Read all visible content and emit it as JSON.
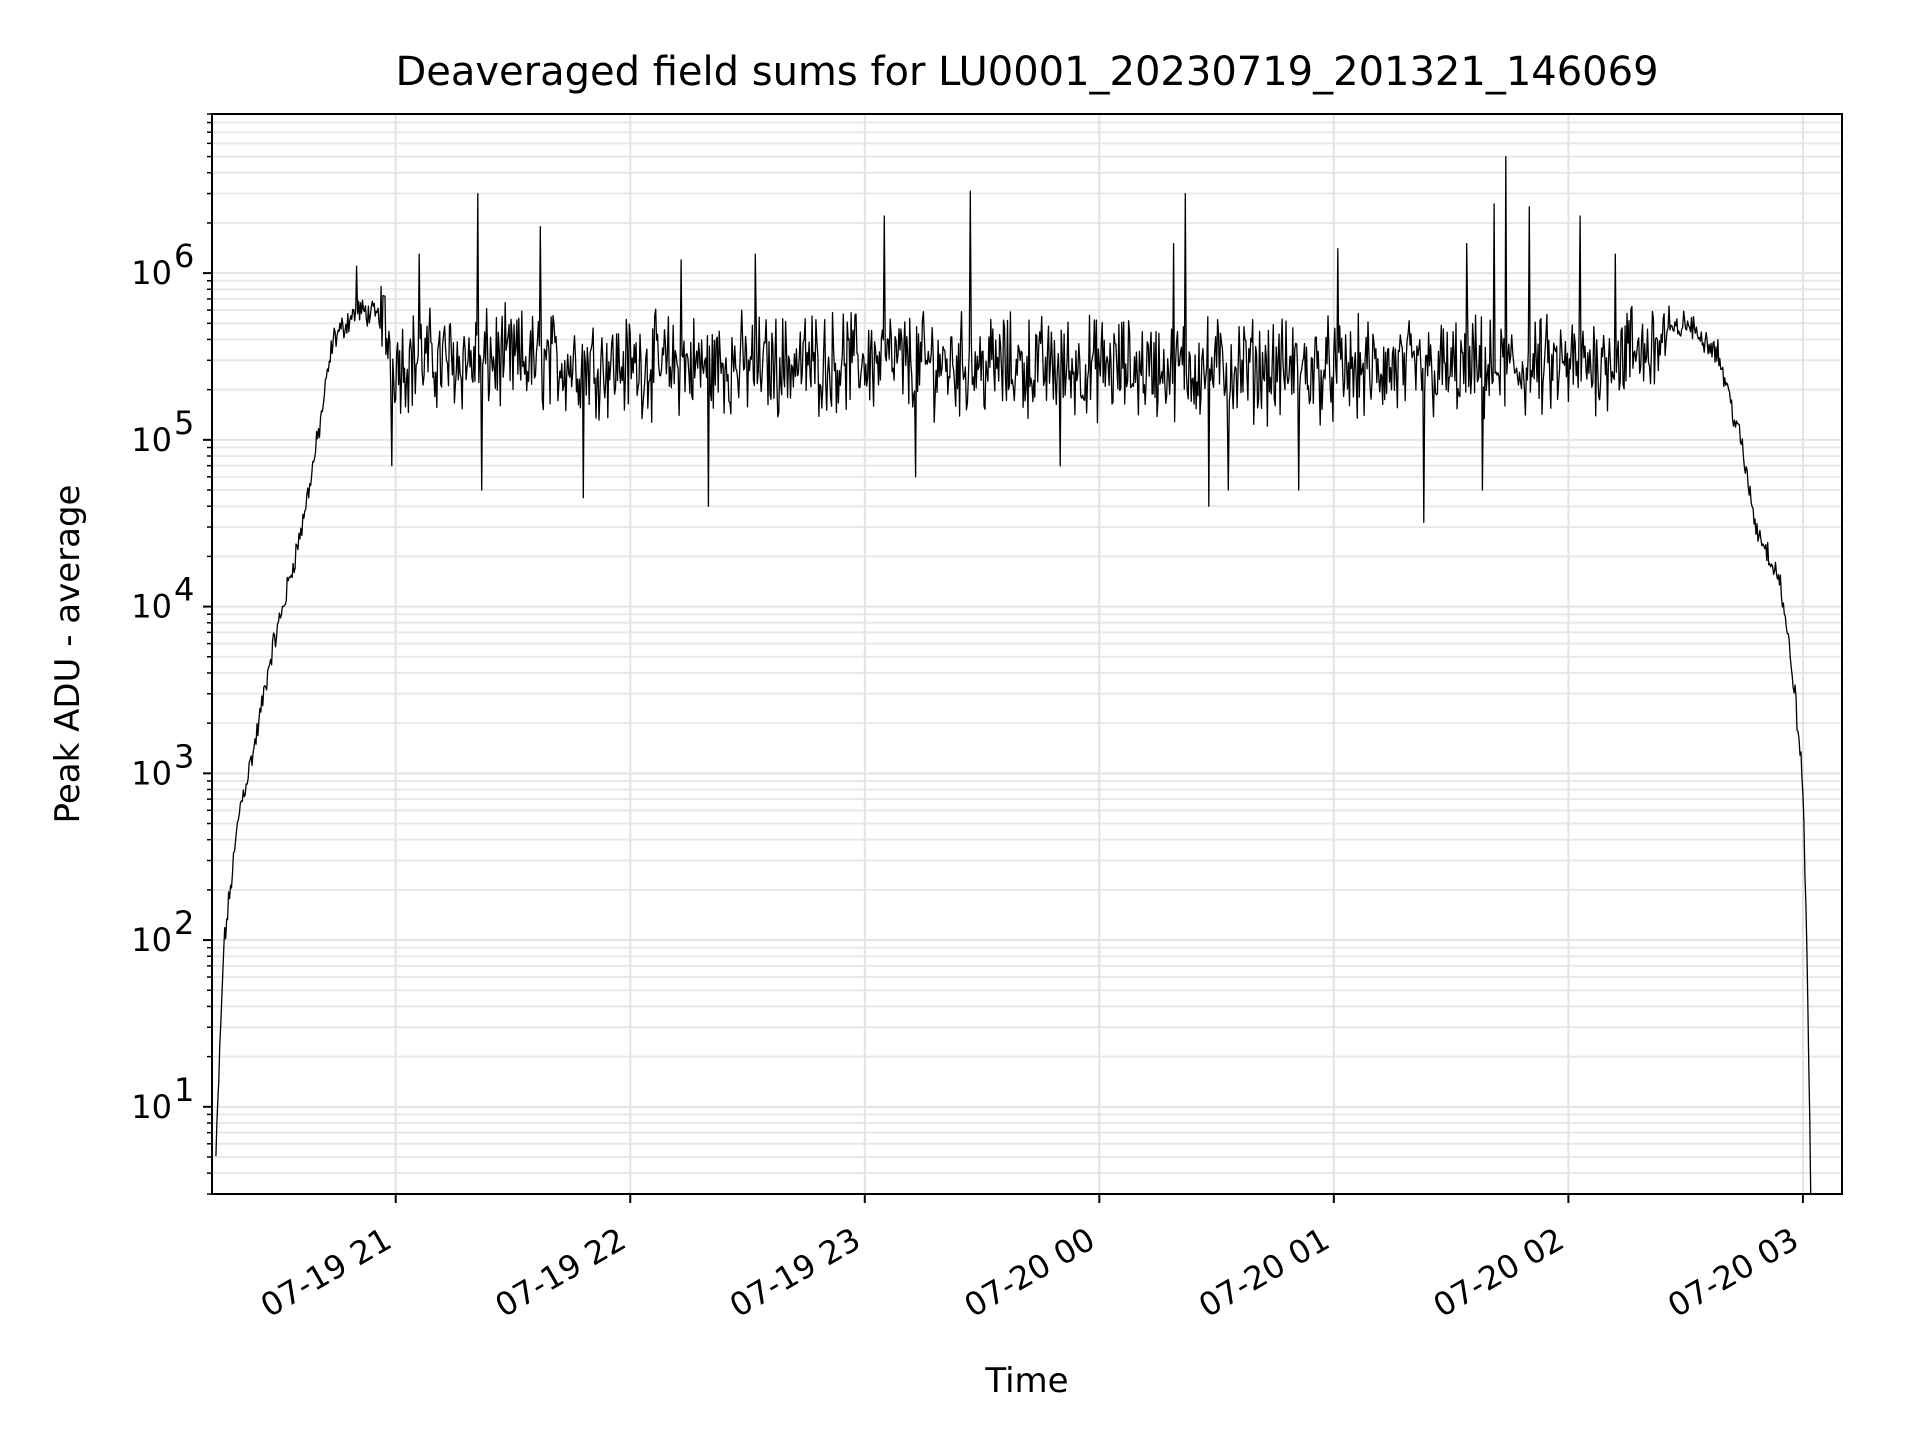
{
  "chart_data": {
    "type": "line",
    "title": "Deaveraged field sums for LU0001_20230719_201321_146069",
    "xlabel": "Time",
    "ylabel": "Peak ADU - average",
    "y_scale": "log",
    "ylim": [
      3,
      9000000
    ],
    "xlim": [
      "2023-07-19 20:13",
      "2023-07-20 03:10"
    ],
    "x_ticks": [
      {
        "value": "2023-07-19 21:00",
        "label": "07-19 21"
      },
      {
        "value": "2023-07-19 22:00",
        "label": "07-19 22"
      },
      {
        "value": "2023-07-19 23:00",
        "label": "07-19 23"
      },
      {
        "value": "2023-07-20 00:00",
        "label": "07-20 00"
      },
      {
        "value": "2023-07-20 01:00",
        "label": "07-20 01"
      },
      {
        "value": "2023-07-20 02:00",
        "label": "07-20 02"
      },
      {
        "value": "2023-07-20 03:00",
        "label": "07-20 03"
      }
    ],
    "y_ticks": [
      {
        "value": 10,
        "label": "10",
        "exp": "1"
      },
      {
        "value": 100,
        "label": "10",
        "exp": "2"
      },
      {
        "value": 1000,
        "label": "10",
        "exp": "3"
      },
      {
        "value": 10000,
        "label": "10",
        "exp": "4"
      },
      {
        "value": 100000,
        "label": "10",
        "exp": "5"
      },
      {
        "value": 1000000,
        "label": "10",
        "exp": "6"
      }
    ],
    "grid": true,
    "series": [
      {
        "color": "#000000",
        "points": [
          [
            "2023-07-19 20:14",
            5
          ],
          [
            "2023-07-19 20:16",
            90
          ],
          [
            "2023-07-19 20:20",
            600
          ],
          [
            "2023-07-19 20:24",
            1500
          ],
          [
            "2023-07-19 20:28",
            5000
          ],
          [
            "2023-07-19 20:32",
            12000
          ],
          [
            "2023-07-19 20:36",
            30000
          ],
          [
            "2023-07-19 20:40",
            100000
          ],
          [
            "2023-07-19 20:44",
            400000
          ],
          [
            "2023-07-19 20:50",
            600000
          ],
          [
            "2023-07-19 20:56",
            550000
          ],
          [
            "2023-07-19 21:00",
            300000
          ],
          [
            "2023-07-19 21:30",
            300000
          ],
          [
            "2023-07-19 22:00",
            280000
          ],
          [
            "2023-07-19 22:30",
            280000
          ],
          [
            "2023-07-19 23:00",
            300000
          ],
          [
            "2023-07-19 23:30",
            280000
          ],
          [
            "2023-07-20 00:00",
            270000
          ],
          [
            "2023-07-20 00:30",
            270000
          ],
          [
            "2023-07-20 01:00",
            260000
          ],
          [
            "2023-07-20 01:30",
            260000
          ],
          [
            "2023-07-20 02:00",
            270000
          ],
          [
            "2023-07-20 02:20",
            350000
          ],
          [
            "2023-07-20 02:30",
            500000
          ],
          [
            "2023-07-20 02:38",
            350000
          ],
          [
            "2023-07-20 02:44",
            100000
          ],
          [
            "2023-07-20 02:48",
            30000
          ],
          [
            "2023-07-20 02:54",
            15000
          ],
          [
            "2023-07-20 02:58",
            3000
          ],
          [
            "2023-07-20 03:00",
            800
          ],
          [
            "2023-07-20 03:01",
            100
          ],
          [
            "2023-07-20 03:02",
            3
          ]
        ],
        "spikes": [
          [
            "2023-07-19 20:50",
            1100000
          ],
          [
            "2023-07-19 21:06",
            1300000
          ],
          [
            "2023-07-19 21:21",
            3000000
          ],
          [
            "2023-07-19 21:37",
            1900000
          ],
          [
            "2023-07-19 22:13",
            1200000
          ],
          [
            "2023-07-19 22:32",
            1300000
          ],
          [
            "2023-07-19 23:05",
            2200000
          ],
          [
            "2023-07-19 23:27",
            3100000
          ],
          [
            "2023-07-20 00:19",
            1500000
          ],
          [
            "2023-07-20 00:22",
            3000000
          ],
          [
            "2023-07-20 01:01",
            1400000
          ],
          [
            "2023-07-20 01:34",
            1500000
          ],
          [
            "2023-07-20 01:41",
            2600000
          ],
          [
            "2023-07-20 01:44",
            5000000
          ],
          [
            "2023-07-20 01:50",
            2500000
          ],
          [
            "2023-07-20 02:03",
            2200000
          ],
          [
            "2023-07-20 02:12",
            1300000
          ]
        ],
        "dips": [
          [
            "2023-07-19 20:59",
            70000
          ],
          [
            "2023-07-19 21:22",
            50000
          ],
          [
            "2023-07-19 21:48",
            45000
          ],
          [
            "2023-07-19 22:20",
            40000
          ],
          [
            "2023-07-19 23:13",
            60000
          ],
          [
            "2023-07-19 23:50",
            70000
          ],
          [
            "2023-07-20 00:28",
            40000
          ],
          [
            "2023-07-20 00:33",
            50000
          ],
          [
            "2023-07-20 00:51",
            50000
          ],
          [
            "2023-07-20 01:23",
            32000
          ],
          [
            "2023-07-20 01:38",
            50000
          ]
        ]
      }
    ]
  }
}
